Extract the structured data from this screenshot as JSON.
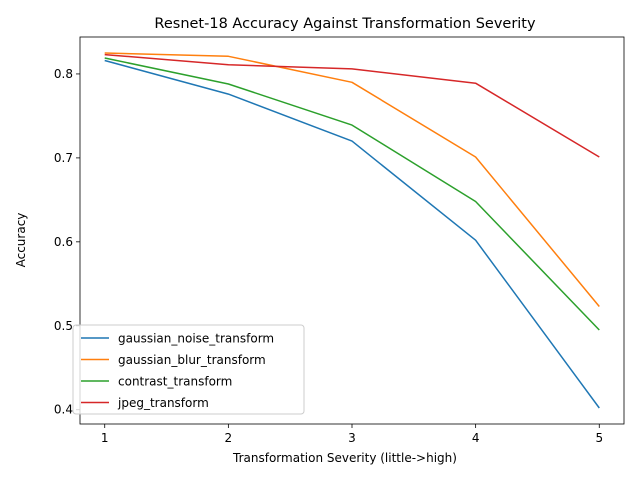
{
  "chart_data": {
    "type": "line",
    "title": "Resnet-18 Accuracy Against Transformation Severity",
    "xlabel": "Transformation Severity (little->high)",
    "ylabel": "Accuracy",
    "x": [
      1,
      2,
      3,
      4,
      5
    ],
    "xlim": [
      0.8,
      5.2
    ],
    "ylim": [
      0.383,
      0.844
    ],
    "xticks": [
      1,
      2,
      3,
      4,
      5
    ],
    "yticks": [
      0.4,
      0.5,
      0.6,
      0.7,
      0.8
    ],
    "ytick_labels": [
      "0.4",
      "0.5",
      "0.6",
      "0.7",
      "0.8"
    ],
    "grid": false,
    "legend_position": "lower-left",
    "series": [
      {
        "name": "gaussian_noise_transform",
        "color": "#1f77b4",
        "values": [
          0.816,
          0.776,
          0.72,
          0.602,
          0.402
        ]
      },
      {
        "name": "gaussian_blur_transform",
        "color": "#ff7f0e",
        "values": [
          0.825,
          0.821,
          0.79,
          0.701,
          0.523
        ]
      },
      {
        "name": "contrast_transform",
        "color": "#2ca02c",
        "values": [
          0.819,
          0.788,
          0.739,
          0.648,
          0.495
        ]
      },
      {
        "name": "jpeg_transform",
        "color": "#d62728",
        "values": [
          0.823,
          0.811,
          0.806,
          0.789,
          0.701
        ]
      }
    ]
  }
}
